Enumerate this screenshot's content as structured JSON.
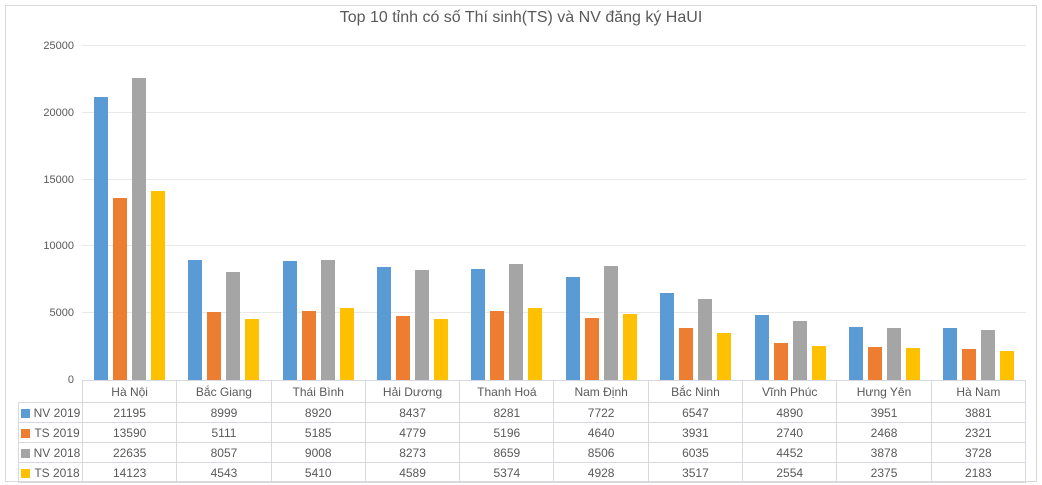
{
  "chart_data": {
    "type": "bar",
    "title": "Top 10 tỉnh có số Thí sinh(TS) và NV đăng ký HaUI",
    "categories": [
      "Hà Nội",
      "Bắc Giang",
      "Thái Bình",
      "Hải Dương",
      "Thanh Hoá",
      "Nam Định",
      "Bắc Ninh",
      "Vĩnh Phúc",
      "Hưng Yên",
      "Hà Nam"
    ],
    "series": [
      {
        "name": "NV 2019",
        "color": "#5B9BD5",
        "values": [
          21195,
          8999,
          8920,
          8437,
          8281,
          7722,
          6547,
          4890,
          3951,
          3881
        ]
      },
      {
        "name": "TS 2019",
        "color": "#ED7D31",
        "values": [
          13590,
          5111,
          5185,
          4779,
          5196,
          4640,
          3931,
          2740,
          2468,
          2321
        ]
      },
      {
        "name": "NV 2018",
        "color": "#A5A5A5",
        "values": [
          22635,
          8057,
          9008,
          8273,
          8659,
          8506,
          6035,
          4452,
          3878,
          3728
        ]
      },
      {
        "name": "TS 2018",
        "color": "#FFC000",
        "values": [
          14123,
          4543,
          5410,
          4589,
          5374,
          4928,
          3517,
          2554,
          2375,
          2183
        ]
      }
    ],
    "ylim": [
      0,
      25000
    ],
    "yticks": [
      0,
      5000,
      10000,
      15000,
      20000,
      25000
    ],
    "grid": true,
    "legend_position": "data-table-left",
    "data_table": true,
    "xlabel": "",
    "ylabel": ""
  },
  "style": {
    "text_color": "#595959",
    "frame_border_color": "#D9D9D9",
    "table_border_color": "#D6D9E0",
    "gridline_color": "#E8E8E8"
  }
}
